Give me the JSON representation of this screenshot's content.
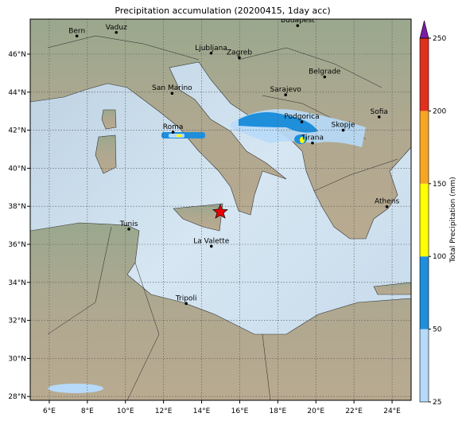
{
  "title": "Precipitation accumulation (20200415, 1day acc)",
  "map": {
    "xticks": [
      {
        "value": 6,
        "label": "6°E"
      },
      {
        "value": 8,
        "label": "8°E"
      },
      {
        "value": 10,
        "label": "10°E"
      },
      {
        "value": 12,
        "label": "12°E"
      },
      {
        "value": 14,
        "label": "14°E"
      },
      {
        "value": 16,
        "label": "16°E"
      },
      {
        "value": 18,
        "label": "18°E"
      },
      {
        "value": 20,
        "label": "20°E"
      },
      {
        "value": 22,
        "label": "22°E"
      },
      {
        "value": 24,
        "label": "24°E"
      }
    ],
    "yticks": [
      {
        "value": 28,
        "label": "28°N"
      },
      {
        "value": 30,
        "label": "30°N"
      },
      {
        "value": 32,
        "label": "32°N"
      },
      {
        "value": 34,
        "label": "34°N"
      },
      {
        "value": 36,
        "label": "36°N"
      },
      {
        "value": 38,
        "label": "38°N"
      },
      {
        "value": 40,
        "label": "40°N"
      },
      {
        "value": 42,
        "label": "42°N"
      },
      {
        "value": 44,
        "label": "44°N"
      },
      {
        "value": 46,
        "label": "46°N"
      }
    ],
    "cities": [
      "Bern",
      "Vaduz",
      "Ljubljana",
      "Zagreb",
      "Budapest",
      "Belgrade",
      "Sarajevo",
      "San Marino",
      "Roma",
      "Podgorica",
      "Sofia",
      "Skopje",
      "Tirana",
      "Athens",
      "Tunis",
      "La Valette",
      "Tripoli"
    ]
  },
  "colorbar": {
    "label": "Total Precipitation (mm)",
    "ticks": [
      25,
      50,
      100,
      150,
      200,
      250
    ],
    "colors": [
      "#b7dafa",
      "#1f8fdc",
      "#ffff00",
      "#f5a623",
      "#e0301e"
    ],
    "extend_color": "#7b1fa2"
  }
}
